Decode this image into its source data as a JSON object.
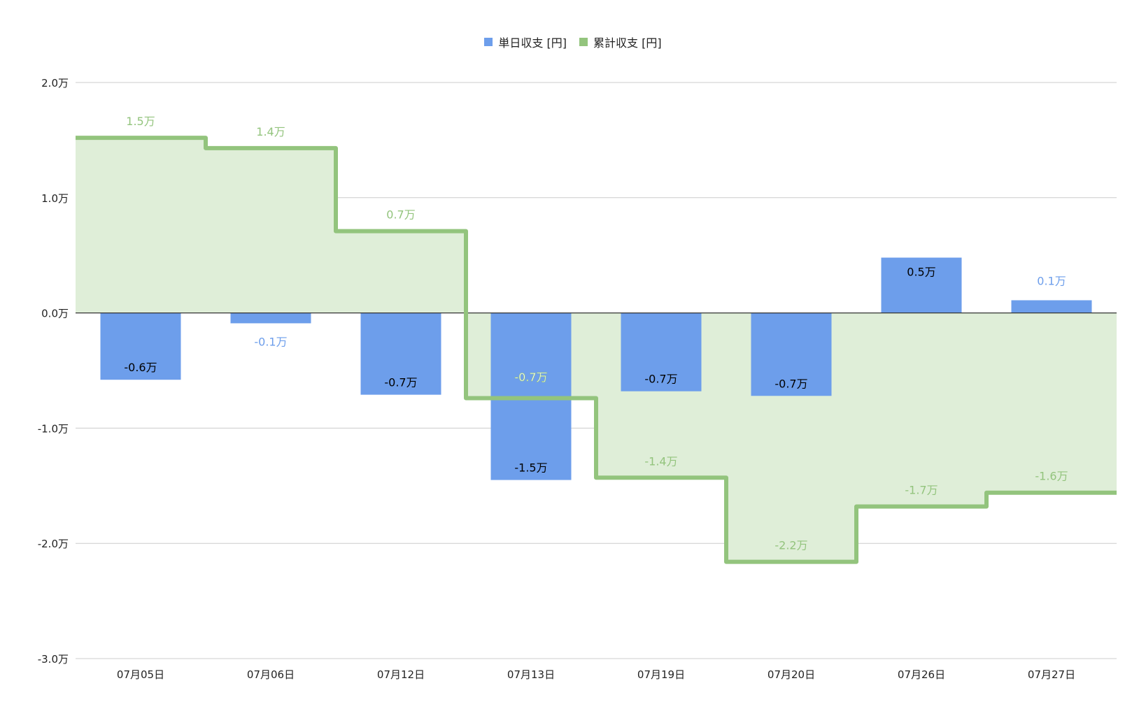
{
  "chart_data": {
    "type": "bar",
    "categories": [
      "07月05日",
      "07月06日",
      "07月12日",
      "07月13日",
      "07月19日",
      "07月20日",
      "07月26日",
      "07月27日"
    ],
    "series": [
      {
        "name": "単日収支 [円]",
        "type": "bar",
        "color": "#6d9eeb",
        "values": [
          -0.58,
          -0.09,
          -0.71,
          -1.45,
          -0.68,
          -0.72,
          0.48,
          0.11
        ],
        "sub_values": [
          null,
          null,
          null,
          -0.7,
          null,
          null,
          null,
          null
        ],
        "labels": [
          "-0.6万",
          "-0.1万",
          "-0.7万",
          "-1.5万",
          "-0.7万",
          "-0.7万",
          "0.5万",
          "0.1万"
        ],
        "sub_labels": [
          "",
          "",
          "",
          "-0.7万",
          "",
          "",
          "",
          ""
        ]
      },
      {
        "name": "累計収支 [円]",
        "type": "stepped-area",
        "color": "#93c47d",
        "fill": "#dfeed8",
        "values": [
          1.52,
          1.43,
          0.71,
          -0.74,
          -1.43,
          -2.16,
          -1.68,
          -1.56
        ],
        "labels": [
          "1.5万",
          "1.4万",
          "0.7万",
          "-0.7万",
          "-1.4万",
          "-2.2万",
          "-1.7万",
          "-1.6万"
        ]
      }
    ],
    "ylim": [
      -3.0,
      2.0
    ],
    "yticks": [
      2.0,
      1.0,
      0.0,
      -1.0,
      -2.0,
      -3.0
    ],
    "ytick_labels": [
      "2.0万",
      "1.0万",
      "0.0万",
      "-1.0万",
      "-2.0万",
      "-3.0万"
    ],
    "legend_position": "top",
    "grid": true,
    "colors": {
      "gridline": "#cccccc",
      "zero_line": "#333333",
      "axis_text": "#222222",
      "label_dark": "#000000"
    }
  }
}
